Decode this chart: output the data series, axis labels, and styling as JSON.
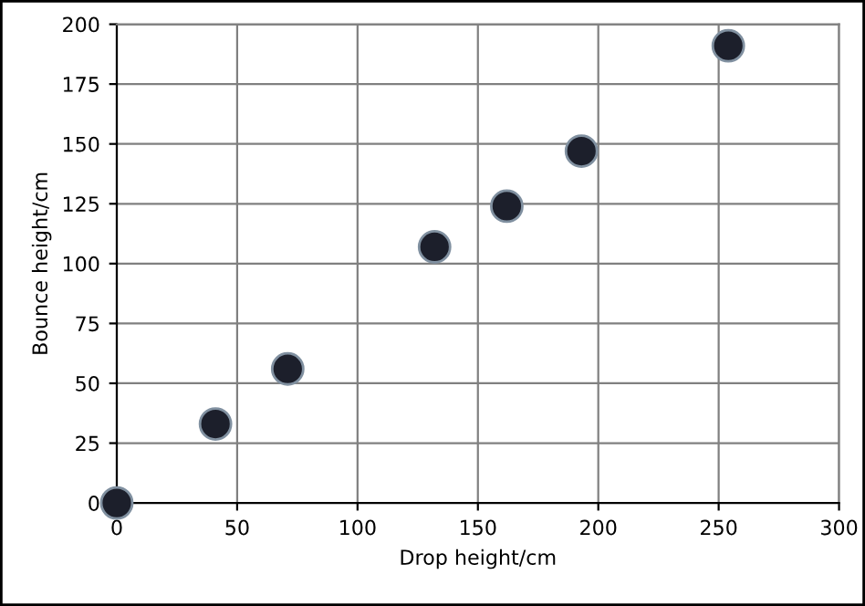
{
  "chart_data": {
    "type": "scatter",
    "xlabel": "Drop height/cm",
    "ylabel": "Bounce height/cm",
    "x": [
      0,
      41,
      71,
      132,
      162,
      193,
      254
    ],
    "values": [
      0,
      33,
      56,
      107,
      124,
      147,
      191
    ],
    "color": "#1c1f2b",
    "marker": "circle",
    "xlim": [
      0,
      300
    ],
    "xticks": [
      0,
      50,
      100,
      150,
      200,
      250,
      300
    ],
    "ylim": [
      0,
      200
    ],
    "yticks": [
      0,
      25,
      50,
      75,
      100,
      125,
      150,
      175,
      200
    ],
    "grid": true
  }
}
